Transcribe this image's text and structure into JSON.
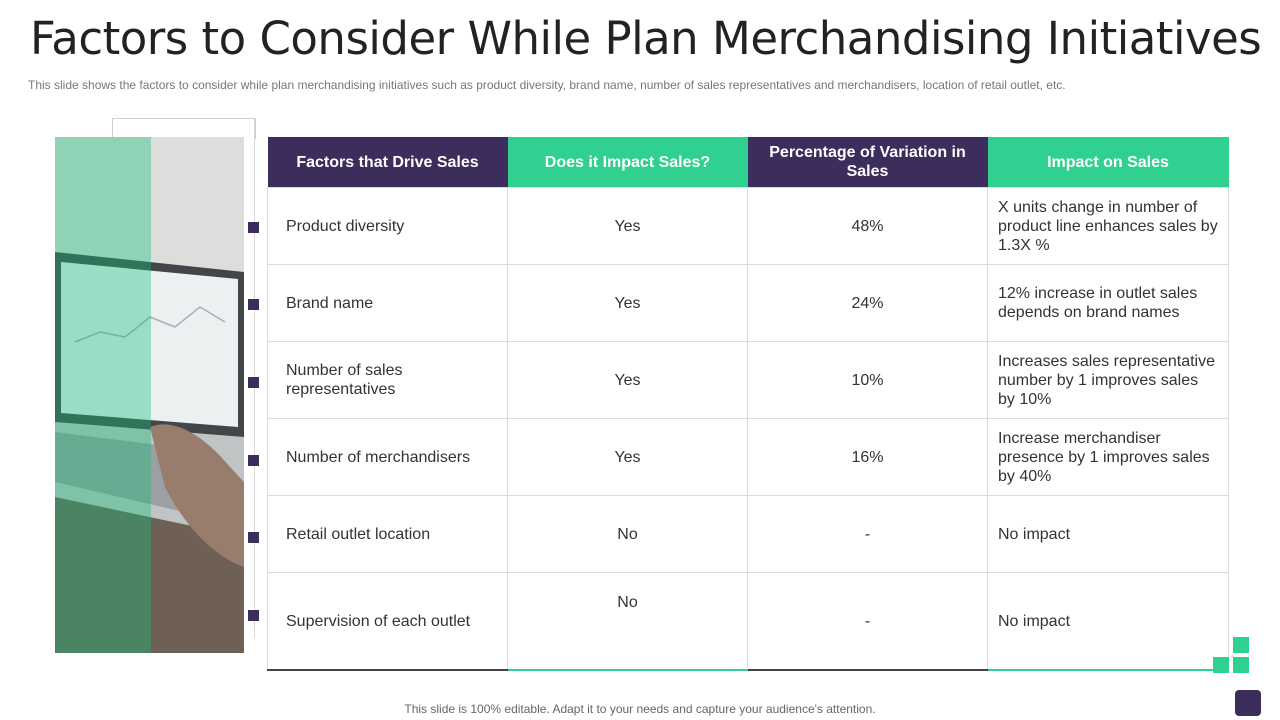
{
  "slide": {
    "title": "Factors to Consider While Plan Merchandising Initiatives",
    "subtitle": "This slide shows the factors to consider while plan merchandising initiatives such as product diversity, brand name, number of sales representatives  and merchandisers, location of retail outlet, etc.",
    "footer": "This slide is 100% editable. Adapt it to your needs and capture your audience's attention."
  },
  "table": {
    "headers": [
      "Factors that Drive Sales",
      "Does it Impact Sales?",
      "Percentage of Variation in Sales",
      "Impact on Sales"
    ],
    "rows": [
      {
        "factor": "Product diversity",
        "impact": "Yes",
        "variation": "48%",
        "effect": "X units change in number of product line enhances sales by 1.3X %"
      },
      {
        "factor": "Brand name",
        "impact": "Yes",
        "variation": "24%",
        "effect": "12% increase in outlet sales depends on brand names"
      },
      {
        "factor": "Number of sales representatives",
        "impact": "Yes",
        "variation": "10%",
        "effect": "Increases sales representative number by 1 improves sales by 10%"
      },
      {
        "factor": "Number of merchandisers",
        "impact": "Yes",
        "variation": "16%",
        "effect": "Increase merchandiser presence by 1 improves sales by 40%"
      },
      {
        "factor": "Retail outlet location",
        "impact": "No",
        "variation": "-",
        "effect": "No impact"
      },
      {
        "factor": "Supervision of each outlet",
        "impact": "No",
        "variation": "-",
        "effect": "No impact"
      }
    ]
  },
  "colors": {
    "purple": "#3d2d5c",
    "green": "#2fd090"
  }
}
